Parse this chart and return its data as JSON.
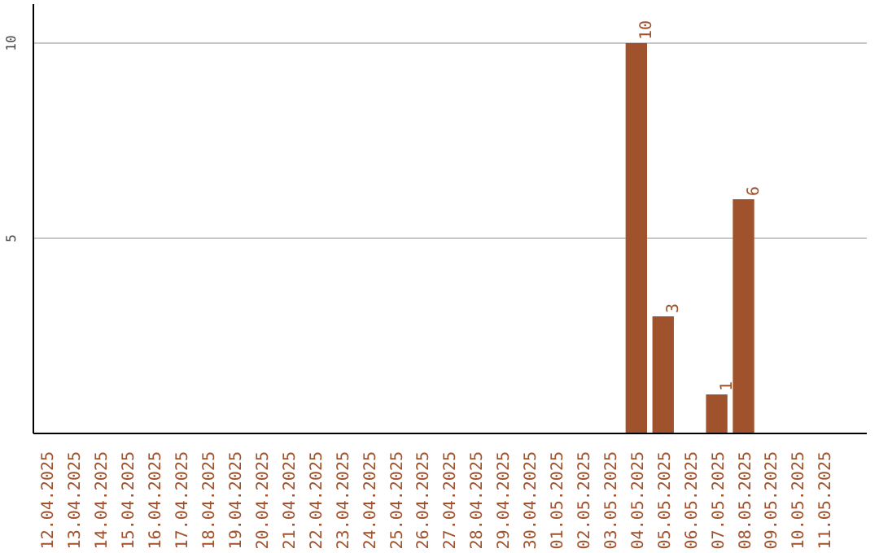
{
  "chart_data": {
    "type": "bar",
    "categories": [
      "12.04.2025",
      "13.04.2025",
      "14.04.2025",
      "15.04.2025",
      "16.04.2025",
      "17.04.2025",
      "18.04.2025",
      "19.04.2025",
      "20.04.2025",
      "21.04.2025",
      "22.04.2025",
      "23.04.2025",
      "24.04.2025",
      "25.04.2025",
      "26.04.2025",
      "27.04.2025",
      "28.04.2025",
      "29.04.2025",
      "30.04.2025",
      "01.05.2025",
      "02.05.2025",
      "03.05.2025",
      "04.05.2025",
      "05.05.2025",
      "06.05.2025",
      "07.05.2025",
      "08.05.2025",
      "09.05.2025",
      "10.05.2025",
      "11.05.2025"
    ],
    "values": [
      0,
      0,
      0,
      0,
      0,
      0,
      0,
      0,
      0,
      0,
      0,
      0,
      0,
      0,
      0,
      0,
      0,
      0,
      0,
      0,
      0,
      0,
      10,
      3,
      0,
      1,
      6,
      0,
      0,
      0
    ],
    "value_labels": [
      null,
      null,
      null,
      null,
      null,
      null,
      null,
      null,
      null,
      null,
      null,
      null,
      null,
      null,
      null,
      null,
      null,
      null,
      null,
      null,
      null,
      null,
      "10",
      "3",
      null,
      "1",
      "6",
      null,
      null,
      null
    ],
    "color": "#a0522d",
    "ylim": [
      0,
      11
    ],
    "yticks": [
      5,
      10
    ],
    "grid": "y"
  }
}
